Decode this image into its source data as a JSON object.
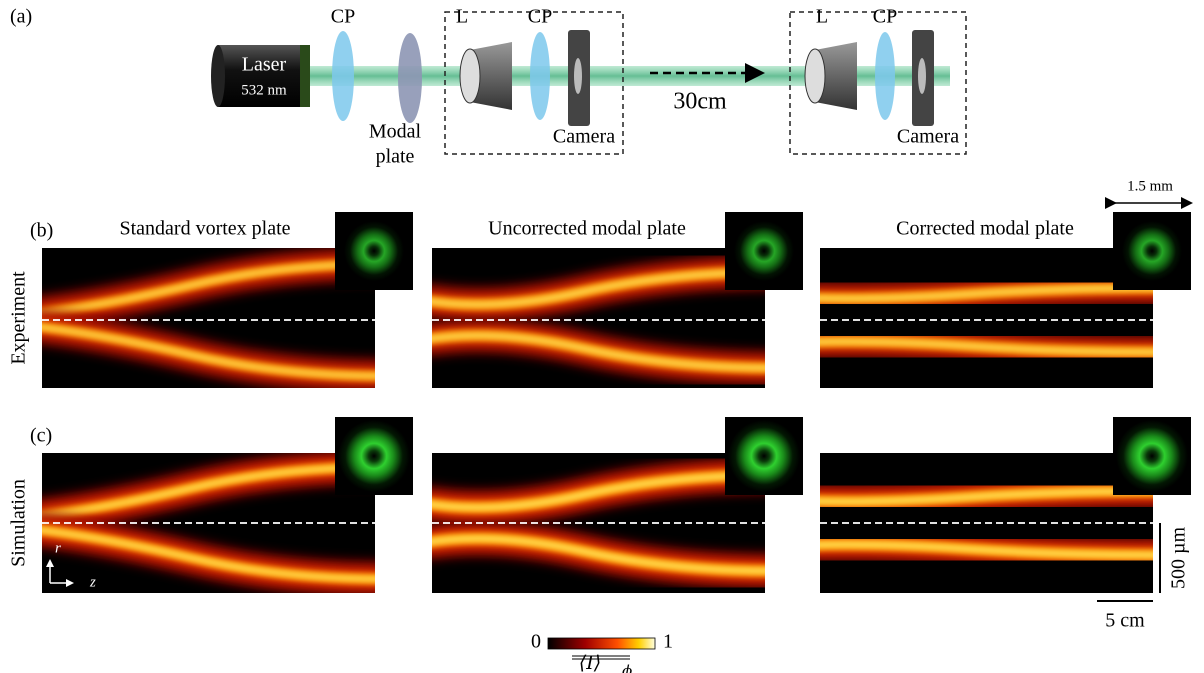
{
  "panel_a": {
    "label": "(a)",
    "laser": {
      "name": "Laser",
      "wavelength": "532 nm"
    },
    "cp_1": "CP",
    "modal_plate": [
      "Modal",
      "plate"
    ],
    "box_1": {
      "lens": "L",
      "cp": "CP",
      "camera": "Camera"
    },
    "distance": "30cm",
    "box_2": {
      "lens": "L",
      "cp": "CP",
      "camera": "Camera"
    }
  },
  "panel_b": {
    "label": "(b)",
    "row_label": "Experiment",
    "titles": [
      "Standard vortex plate",
      "Uncorrected modal plate",
      "Corrected modal plate"
    ],
    "inset_scale": "1.5 mm"
  },
  "panel_c": {
    "label": "(c)",
    "row_label": "Simulation",
    "axis_r": "r",
    "axis_z": "z",
    "scale_r": "500 µm",
    "scale_z": "5 cm"
  },
  "colorbar": {
    "min": "0",
    "max": "1",
    "label": "⟨I⟩",
    "subscript": "ϕ"
  }
}
